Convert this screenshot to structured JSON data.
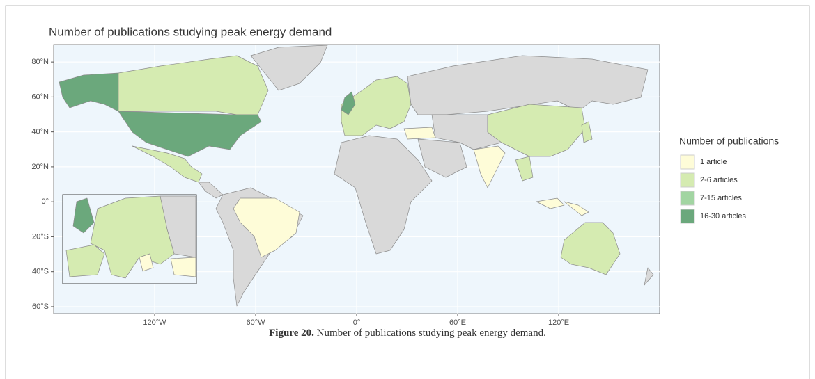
{
  "chart_data": {
    "type": "choropleth",
    "title": "Number of publications studying peak energy demand",
    "xlim": [
      -180,
      180
    ],
    "ylim": [
      -64,
      90
    ],
    "xticks": [
      {
        "value": -120,
        "label": "120°W"
      },
      {
        "value": -60,
        "label": "60°W"
      },
      {
        "value": 0,
        "label": "0°"
      },
      {
        "value": 60,
        "label": "60°E"
      },
      {
        "value": 120,
        "label": "120°E"
      }
    ],
    "yticks": [
      {
        "value": 80,
        "label": "80°N"
      },
      {
        "value": 60,
        "label": "60°N"
      },
      {
        "value": 40,
        "label": "40°N"
      },
      {
        "value": 20,
        "label": "20°N"
      },
      {
        "value": 0,
        "label": "0°"
      },
      {
        "value": -20,
        "label": "20°S"
      },
      {
        "value": -40,
        "label": "40°S"
      },
      {
        "value": -60,
        "label": "60°S"
      }
    ],
    "grid": true,
    "legend": {
      "title": "Number of publications",
      "position": "right",
      "items": [
        {
          "label": "1 article",
          "color": "#fefcd8"
        },
        {
          "label": "2-6 articles",
          "color": "#d5ebb1"
        },
        {
          "label": "7-15 articles",
          "color": "#a2d5a2"
        },
        {
          "label": "16-30 articles",
          "color": "#6ba87c"
        }
      ]
    }
  },
  "caption": {
    "label": "Figure 20.",
    "text": "Number of publications studying peak energy demand."
  }
}
